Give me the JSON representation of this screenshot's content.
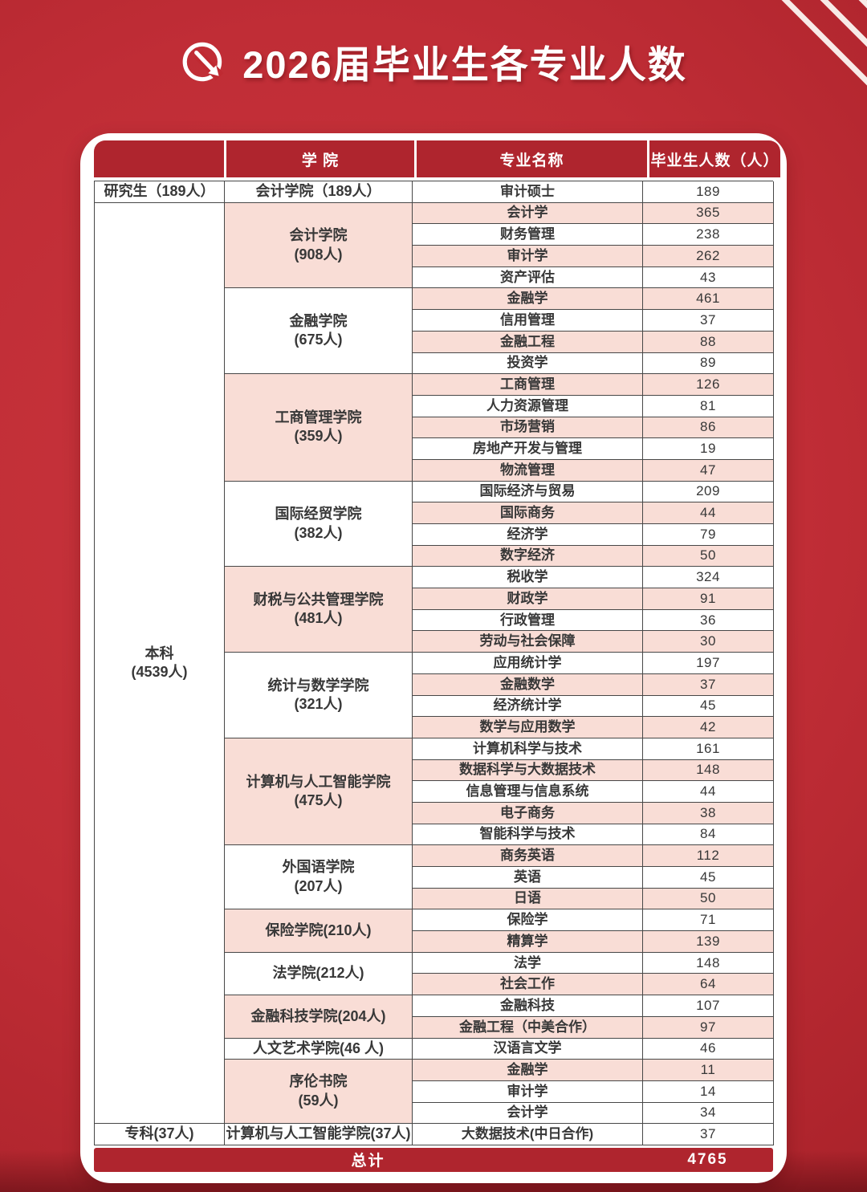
{
  "page": {
    "title": "2026届毕业生各专业人数",
    "title_icon": "circular-arrow-icon"
  },
  "colors": {
    "header-red": "#af252e",
    "row-pink": "#f9ddd6",
    "row-white": "#ffffff",
    "border-dark": "#474747",
    "text-dark": "#383838"
  },
  "table": {
    "header": {
      "category": "",
      "college": "学 院",
      "major": "专业名称",
      "count": "毕业生人数（人）"
    },
    "sections": [
      {
        "category": "研究生（189人）",
        "colleges": [
          {
            "name": "会计学院（189人）",
            "bg": "white",
            "majors": [
              {
                "major": "审计硕士",
                "count": "189",
                "bg": "white"
              }
            ]
          }
        ]
      },
      {
        "category": "本科",
        "category_line2": "(4539人)",
        "colleges": [
          {
            "name": "会计学院",
            "name_line2": "(908人)",
            "bg": "pink",
            "majors": [
              {
                "major": "会计学",
                "count": "365",
                "bg": "pink"
              },
              {
                "major": "财务管理",
                "count": "238",
                "bg": "white"
              },
              {
                "major": "审计学",
                "count": "262",
                "bg": "pink"
              },
              {
                "major": "资产评估",
                "count": "43",
                "bg": "white"
              }
            ]
          },
          {
            "name": "金融学院",
            "name_line2": "(675人)",
            "bg": "white",
            "majors": [
              {
                "major": "金融学",
                "count": "461",
                "bg": "pink"
              },
              {
                "major": "信用管理",
                "count": "37",
                "bg": "white"
              },
              {
                "major": "金融工程",
                "count": "88",
                "bg": "pink"
              },
              {
                "major": "投资学",
                "count": "89",
                "bg": "white"
              }
            ]
          },
          {
            "name": "工商管理学院",
            "name_line2": "(359人)",
            "bg": "pink",
            "majors": [
              {
                "major": "工商管理",
                "count": "126",
                "bg": "pink"
              },
              {
                "major": "人力资源管理",
                "count": "81",
                "bg": "white"
              },
              {
                "major": "市场营销",
                "count": "86",
                "bg": "pink"
              },
              {
                "major": "房地产开发与管理",
                "count": "19",
                "bg": "white"
              },
              {
                "major": "物流管理",
                "count": "47",
                "bg": "pink"
              }
            ]
          },
          {
            "name": "国际经贸学院",
            "name_line2": "(382人)",
            "bg": "white",
            "majors": [
              {
                "major": "国际经济与贸易",
                "count": "209",
                "bg": "white"
              },
              {
                "major": "国际商务",
                "count": "44",
                "bg": "pink"
              },
              {
                "major": "经济学",
                "count": "79",
                "bg": "white"
              },
              {
                "major": "数字经济",
                "count": "50",
                "bg": "pink"
              }
            ]
          },
          {
            "name": "财税与公共管理学院",
            "name_line2": "(481人)",
            "bg": "pink",
            "majors": [
              {
                "major": "税收学",
                "count": "324",
                "bg": "white"
              },
              {
                "major": "财政学",
                "count": "91",
                "bg": "pink"
              },
              {
                "major": "行政管理",
                "count": "36",
                "bg": "white"
              },
              {
                "major": "劳动与社会保障",
                "count": "30",
                "bg": "pink"
              }
            ]
          },
          {
            "name": "统计与数学学院",
            "name_line2": "(321人)",
            "bg": "white",
            "majors": [
              {
                "major": "应用统计学",
                "count": "197",
                "bg": "white"
              },
              {
                "major": "金融数学",
                "count": "37",
                "bg": "pink"
              },
              {
                "major": "经济统计学",
                "count": "45",
                "bg": "white"
              },
              {
                "major": "数学与应用数学",
                "count": "42",
                "bg": "pink"
              }
            ]
          },
          {
            "name": "计算机与人工智能学院",
            "name_line2": "(475人)",
            "bg": "pink",
            "majors": [
              {
                "major": "计算机科学与技术",
                "count": "161",
                "bg": "white"
              },
              {
                "major": "数据科学与大数据技术",
                "count": "148",
                "bg": "pink"
              },
              {
                "major": "信息管理与信息系统",
                "count": "44",
                "bg": "white"
              },
              {
                "major": "电子商务",
                "count": "38",
                "bg": "pink"
              },
              {
                "major": "智能科学与技术",
                "count": "84",
                "bg": "white"
              }
            ]
          },
          {
            "name": "外国语学院",
            "name_line2": "(207人)",
            "bg": "white",
            "majors": [
              {
                "major": "商务英语",
                "count": "112",
                "bg": "pink"
              },
              {
                "major": "英语",
                "count": "45",
                "bg": "white"
              },
              {
                "major": "日语",
                "count": "50",
                "bg": "pink"
              }
            ]
          },
          {
            "name": "保险学院(210人)",
            "bg": "pink",
            "majors": [
              {
                "major": "保险学",
                "count": "71",
                "bg": "white"
              },
              {
                "major": "精算学",
                "count": "139",
                "bg": "pink"
              }
            ]
          },
          {
            "name": "法学院(212人)",
            "bg": "white",
            "majors": [
              {
                "major": "法学",
                "count": "148",
                "bg": "white"
              },
              {
                "major": "社会工作",
                "count": "64",
                "bg": "pink"
              }
            ]
          },
          {
            "name": "金融科技学院(204人)",
            "bg": "pink",
            "majors": [
              {
                "major": "金融科技",
                "count": "107",
                "bg": "white"
              },
              {
                "major": "金融工程（中美合作）",
                "count": "97",
                "bg": "pink"
              }
            ]
          },
          {
            "name": "人文艺术学院(46 人)",
            "bg": "white",
            "majors": [
              {
                "major": "汉语言文学",
                "count": "46",
                "bg": "white"
              }
            ]
          },
          {
            "name": "序伦书院",
            "name_line2": "(59人)",
            "bg": "pink",
            "majors": [
              {
                "major": "金融学",
                "count": "11",
                "bg": "pink"
              },
              {
                "major": "审计学",
                "count": "14",
                "bg": "white"
              },
              {
                "major": "会计学",
                "count": "34",
                "bg": "white"
              }
            ]
          }
        ]
      },
      {
        "category": "专科(37人)",
        "colleges": [
          {
            "name": "计算机与人工智能学院(37人)",
            "bg": "white",
            "majors": [
              {
                "major": "大数据技术(中日合作)",
                "count": "37",
                "bg": "white"
              }
            ]
          }
        ]
      }
    ],
    "footer": {
      "label": "总计",
      "total": "4765"
    }
  }
}
